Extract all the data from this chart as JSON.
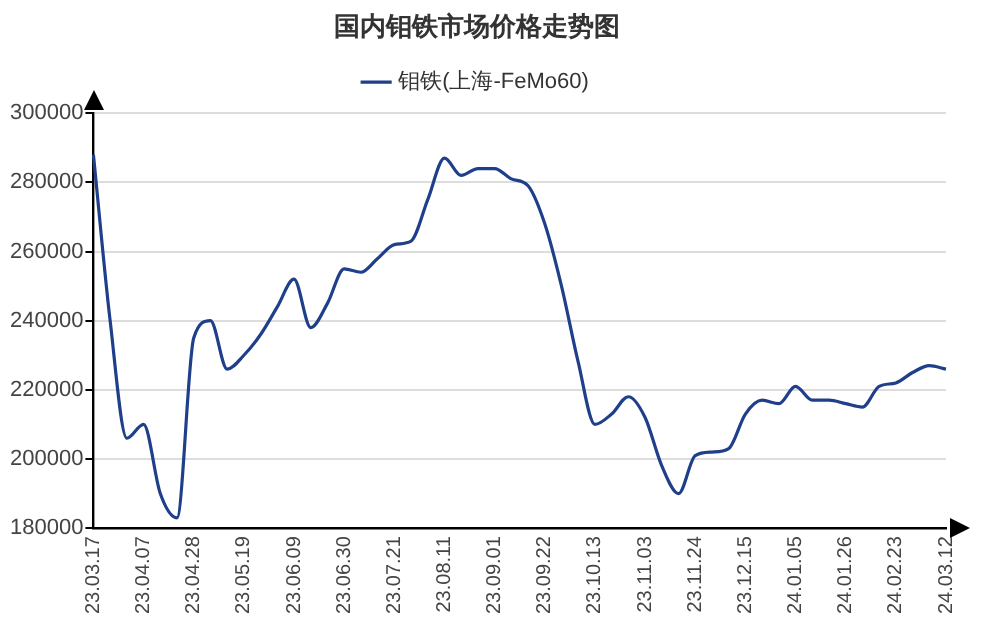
{
  "chart_data": {
    "type": "line",
    "title": "国内钼铁市场价格走势图",
    "categories": [
      "23.03.17",
      null,
      null,
      "23.04.07",
      null,
      null,
      "23.04.28",
      null,
      null,
      "23.05.19",
      null,
      null,
      "23.06.09",
      null,
      null,
      "23.06.30",
      null,
      null,
      "23.07.21",
      null,
      null,
      "23.08.11",
      null,
      null,
      "23.09.01",
      null,
      null,
      "23.09.22",
      null,
      null,
      "23.10.13",
      null,
      null,
      "23.11.03",
      null,
      null,
      "23.11.24",
      null,
      null,
      "23.12.15",
      null,
      null,
      "24.01.05",
      null,
      null,
      "24.01.26",
      null,
      null,
      "24.02.23",
      null,
      null,
      "24.03.12"
    ],
    "series": [
      {
        "name": "钼铁(上海-FeMo60)",
        "color": "#1f3f8a",
        "values": [
          288000,
          240000,
          206000,
          210000,
          190000,
          183000,
          235000,
          240000,
          226000,
          230000,
          236000,
          244000,
          252000,
          238000,
          245000,
          255000,
          254000,
          258000,
          262000,
          263000,
          275000,
          287000,
          282000,
          284000,
          284000,
          281000,
          279000,
          268000,
          250000,
          228000,
          210000,
          213000,
          218000,
          212000,
          198000,
          190000,
          201000,
          202000,
          203000,
          213000,
          217000,
          216000,
          221000,
          217000,
          217000,
          216000,
          215000,
          221000,
          222000,
          225000,
          227000,
          226000
        ]
      }
    ],
    "ylim": [
      180000,
      300000
    ],
    "yticks": [
      180000,
      200000,
      220000,
      240000,
      260000,
      280000,
      300000
    ],
    "grid": "y",
    "legend": "top",
    "marker": "none",
    "line_style": "solid"
  }
}
